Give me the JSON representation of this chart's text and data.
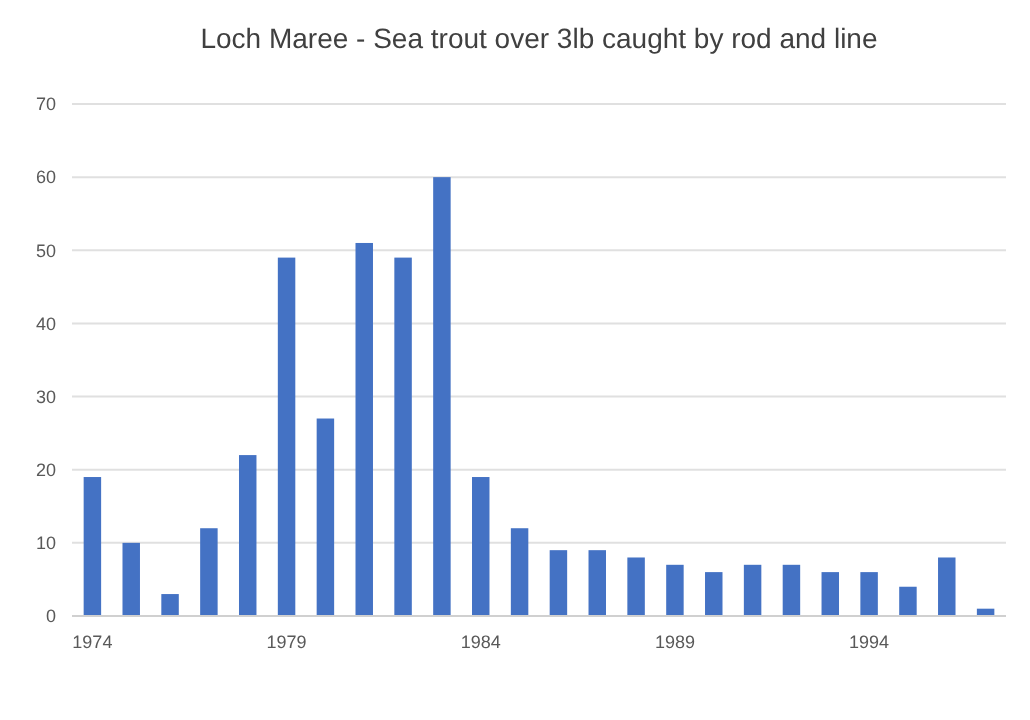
{
  "chart_data": {
    "type": "bar",
    "title": "Loch Maree - Sea trout over 3lb caught by rod and line",
    "categories": [
      "1974",
      null,
      null,
      null,
      null,
      "1979",
      null,
      null,
      null,
      null,
      "1984",
      null,
      null,
      null,
      null,
      "1989",
      null,
      null,
      null,
      null,
      "1994",
      null,
      null,
      null
    ],
    "values": [
      19,
      10,
      3,
      12,
      22,
      49,
      27,
      51,
      49,
      60,
      19,
      12,
      9,
      9,
      8,
      7,
      6,
      7,
      7,
      6,
      6,
      4,
      8,
      1
    ],
    "color": "#4472c4",
    "ylim": [
      0,
      70
    ],
    "yticks": [
      0,
      10,
      20,
      30,
      40,
      50,
      60,
      70
    ],
    "grid": "y"
  }
}
